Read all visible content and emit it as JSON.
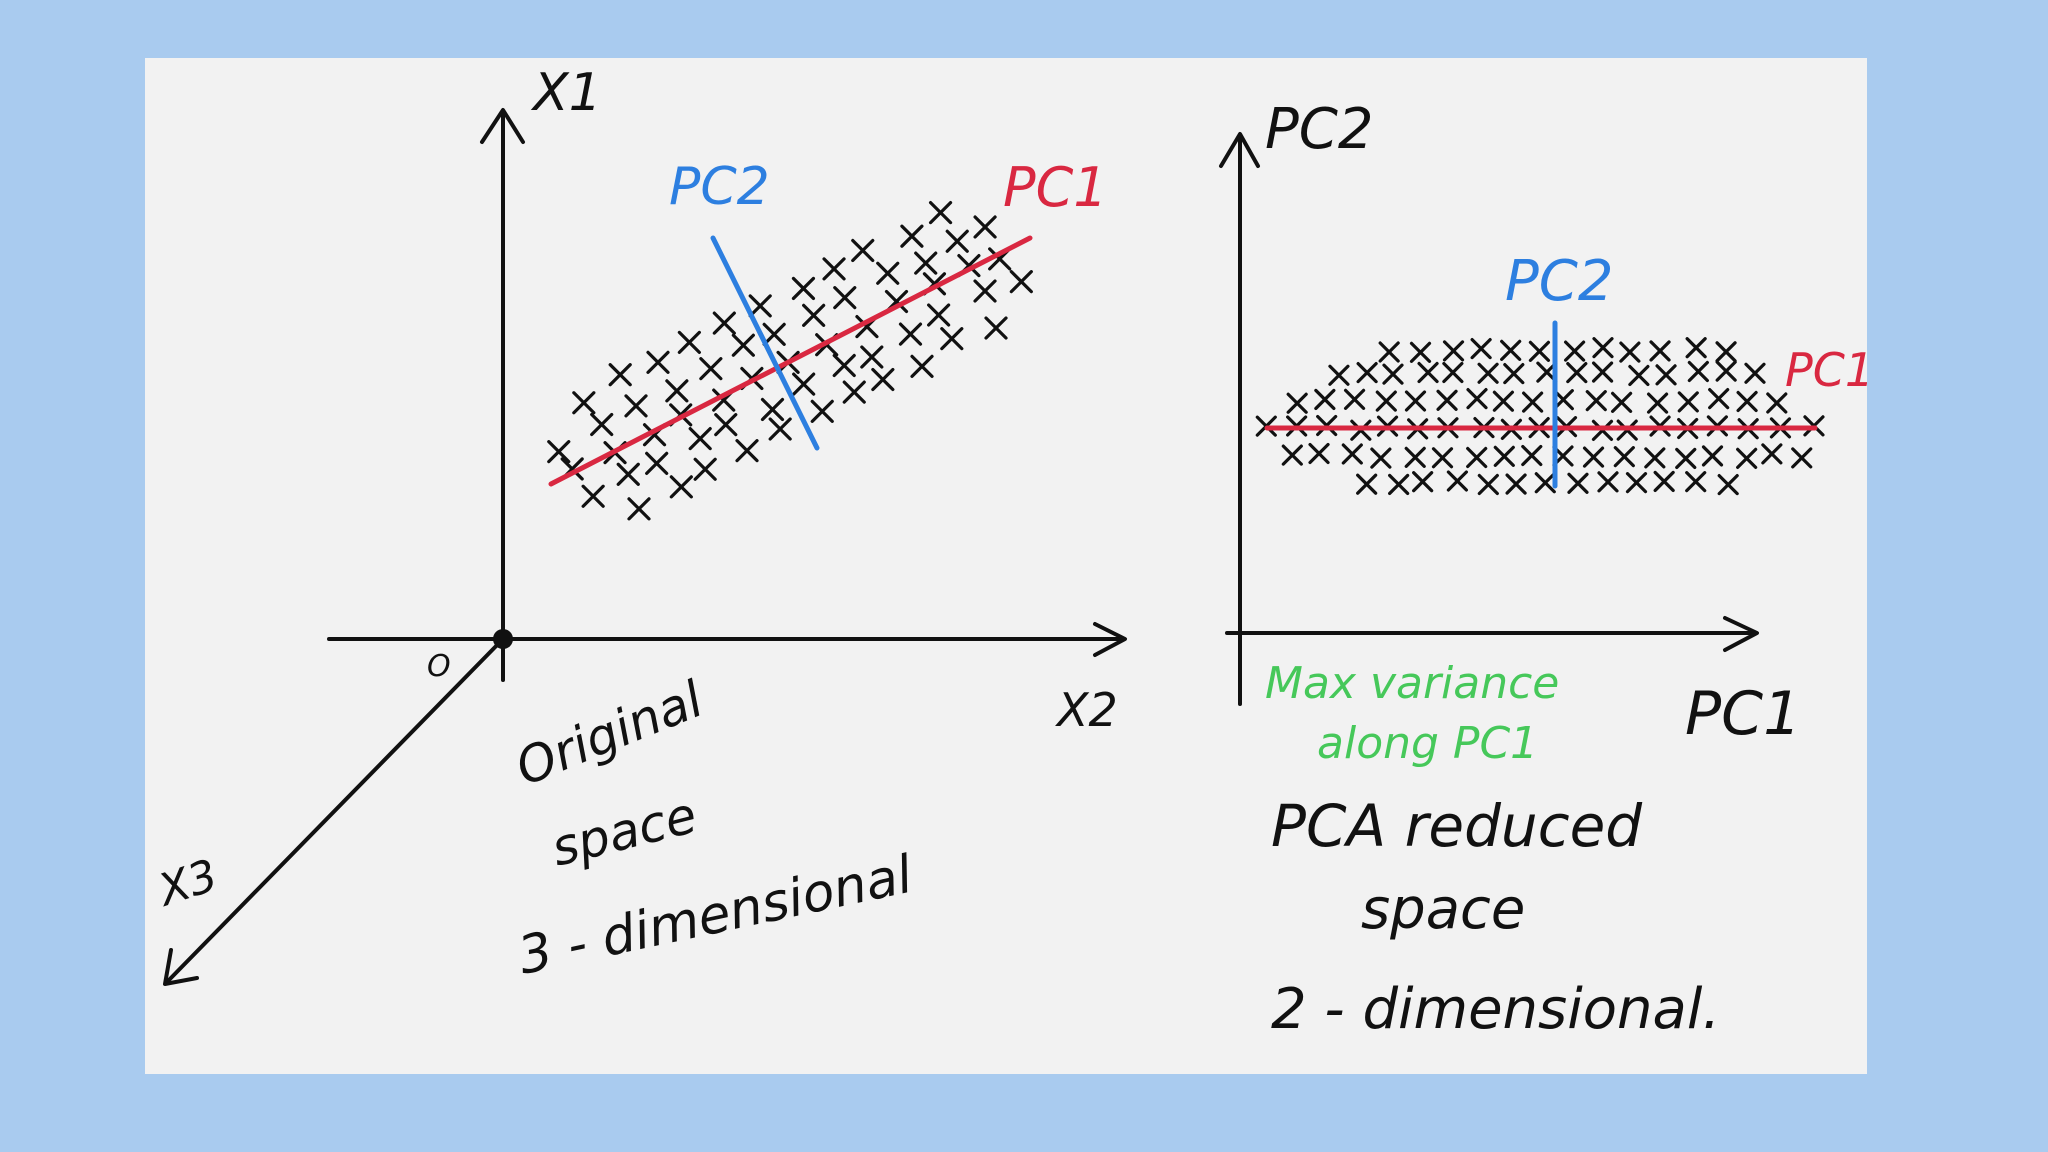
{
  "colors": {
    "background": "#a9cbef",
    "card": "#f2f2f2",
    "ink": "#111111",
    "pc1": "#d92841",
    "pc2": "#2d7fe0",
    "note": "#46c85a"
  },
  "left": {
    "axis_x1": "X1",
    "axis_x2": "X2",
    "axis_x3": "X3",
    "origin": "O",
    "pc1": "PC1",
    "pc2": "PC2",
    "caption": [
      "Original",
      "space",
      "3 - dimensional"
    ]
  },
  "right": {
    "axis_pc2": "PC2",
    "axis_pc1": "PC1",
    "pc2_line": "PC2",
    "pc1_line": "PC1",
    "note": [
      "Max variance",
      "along PC1"
    ],
    "caption": [
      "PCA reduced",
      "space",
      "2 - dimensional."
    ]
  }
}
